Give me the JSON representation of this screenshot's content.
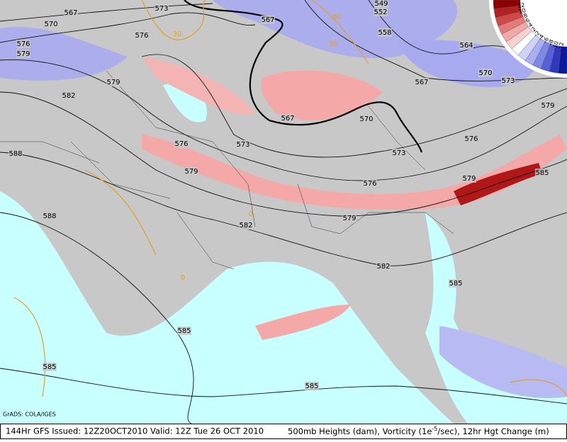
{
  "contour_labels": [
    "567",
    "573",
    "567",
    "549",
    "552",
    "558",
    "570",
    "576",
    "576",
    "579",
    "579",
    "582",
    "588",
    "588",
    "576",
    "579",
    "573",
    "567",
    "570",
    "573",
    "576",
    "579",
    "582",
    "582",
    "564",
    "567",
    "570",
    "573",
    "576",
    "579",
    "579",
    "585",
    "585",
    "585",
    "585",
    "585"
  ],
  "height_change_labels": [
    "30",
    "30",
    "60",
    "0",
    "0"
  ],
  "colorbar_labels": [
    "12",
    "10",
    "8",
    "6",
    "4",
    "2",
    "-2",
    "-4",
    "-6",
    "-8",
    "-10",
    "-12"
  ],
  "credit": "GrADS: COLA/IGES",
  "footer": {
    "run": "144Hr GFS Issued: 12Z20OCT2010 Valid: 12Z Tue 26 OCT 2010",
    "fields_a": "500mb Heights (dam), Vorticity (1e",
    "exponent": "-5",
    "fields_b": "/sec), 12hr Hgt Change (m)"
  }
}
